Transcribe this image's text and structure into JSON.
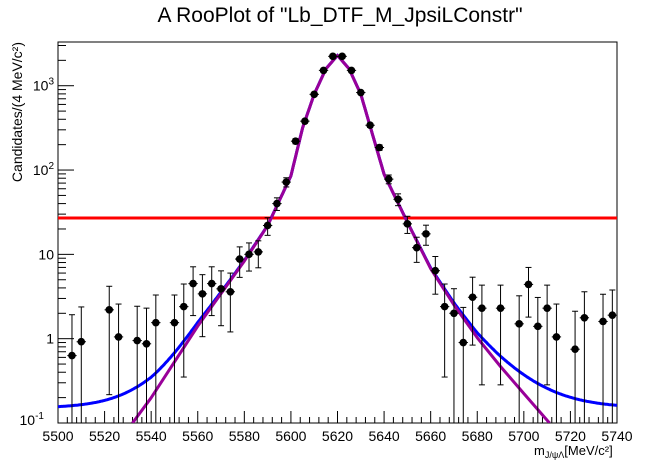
{
  "chart_data": {
    "type": "scatter",
    "title": "A RooPlot of \"Lb_DTF_M_JpsiLConstr\"",
    "xlabel": "m",
    "xlabel_sub": "J/ψΛ",
    "xlabel_unit": "[MeV/c²]",
    "ylabel": "Candidates/(4 MeV/c²)",
    "xlim": [
      5500,
      5740
    ],
    "ylim": [
      0.1,
      3300
    ],
    "yscale": "log",
    "bin_width": 4,
    "x_ticks": [
      "5500",
      "5520",
      "5540",
      "5560",
      "5580",
      "5600",
      "5620",
      "5640",
      "5660",
      "5680",
      "5700",
      "5720",
      "5740"
    ],
    "y_ticks": [
      {
        "base": "10",
        "exp": "-1",
        "value": 0.1
      },
      {
        "base": "1",
        "exp": "",
        "value": 1
      },
      {
        "base": "10",
        "exp": "",
        "value": 10
      },
      {
        "base": "10",
        "exp": "2",
        "value": 100
      },
      {
        "base": "10",
        "exp": "3",
        "value": 1000
      }
    ],
    "points": {
      "x": [
        5506,
        5510,
        5522,
        5526,
        5534,
        5538,
        5542,
        5550,
        5554,
        5558,
        5562,
        5566,
        5570,
        5574,
        5578,
        5582,
        5586,
        5590,
        5594,
        5598,
        5602,
        5606,
        5610,
        5614,
        5618,
        5622,
        5626,
        5630,
        5634,
        5638,
        5642,
        5646,
        5650,
        5654,
        5658,
        5662,
        5666,
        5670,
        5674,
        5678,
        5682,
        5690,
        5698,
        5702,
        5706,
        5710,
        5714,
        5722,
        5726,
        5734,
        5738
      ],
      "y": [
        0.63,
        0.92,
        2.2,
        1.05,
        0.95,
        0.87,
        1.55,
        1.55,
        2.4,
        4.5,
        3.4,
        4.5,
        3.9,
        3.6,
        8.8,
        10,
        10.7,
        22,
        40,
        72,
        220,
        380,
        790,
        1520,
        2230,
        2230,
        1520,
        830,
        340,
        185,
        78,
        45,
        23,
        12,
        17.5,
        6.4,
        2.4,
        2.0,
        0.9,
        3.1,
        2.3,
        2.3,
        1.5,
        4.4,
        1.4,
        2.3,
        1.05,
        0.75,
        1.77,
        1.6,
        1.9
      ]
    },
    "signal_curve": {
      "color": "#990099",
      "x": [
        5532,
        5540,
        5560,
        5580,
        5590,
        5600,
        5605,
        5610,
        5615,
        5620,
        5625,
        5630,
        5640,
        5650,
        5660,
        5670,
        5680,
        5690,
        5700,
        5711
      ],
      "log10_y": [
        -1.0,
        -0.7,
        0.15,
        0.92,
        1.34,
        1.93,
        2.5,
        2.9,
        3.2,
        3.36,
        3.2,
        2.9,
        1.95,
        1.38,
        0.83,
        0.4,
        0.01,
        -0.33,
        -0.65,
        -1.0
      ]
    },
    "total_curve": {
      "color": "#0000ff",
      "background_level": 0.15
    },
    "horizontal_line": {
      "color": "#ff0000",
      "y": 27
    }
  }
}
